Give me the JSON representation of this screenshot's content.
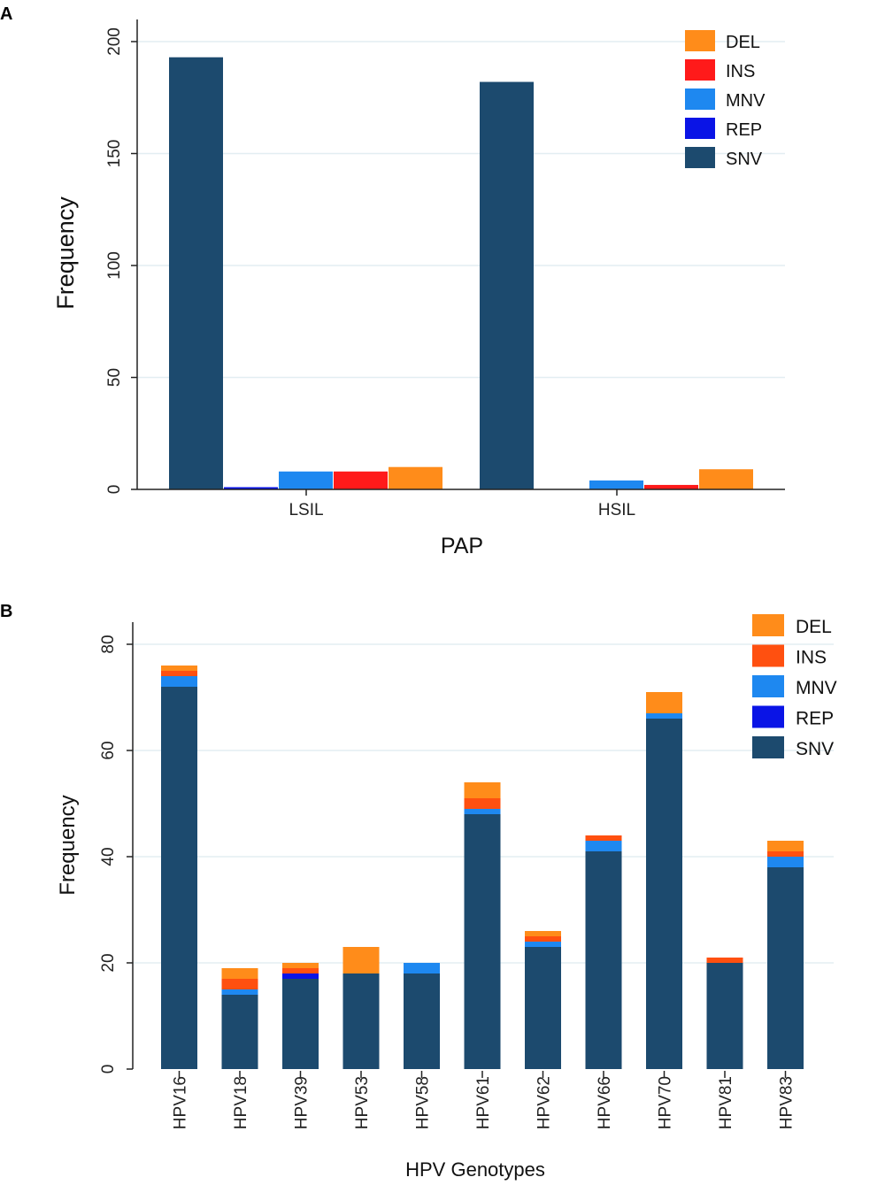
{
  "colors": {
    "DEL": "#ff8c1a",
    "INS": "#ff1a1a",
    "INS_B": "#ff5010",
    "MNV": "#1e88f0",
    "REP": "#0a14e6",
    "SNV": "#1c4a6e",
    "grid": "#e3eef2",
    "axis": "#222222"
  },
  "chart_data": [
    {
      "id": "A",
      "panel_label": "A",
      "type": "bar",
      "title": "",
      "xlabel": "PAP",
      "ylabel": "Frequency",
      "ylim": [
        0,
        210
      ],
      "yticks": [
        "0",
        "50",
        "100",
        "150",
        "200"
      ],
      "grid": true,
      "legend_position": "top-right",
      "categories": [
        "LSIL",
        "HSIL"
      ],
      "series": [
        {
          "name": "SNV",
          "values": [
            193,
            182
          ]
        },
        {
          "name": "REP",
          "values": [
            1,
            0
          ]
        },
        {
          "name": "MNV",
          "values": [
            8,
            4
          ]
        },
        {
          "name": "INS",
          "values": [
            8,
            2
          ]
        },
        {
          "name": "DEL",
          "values": [
            10,
            9
          ]
        }
      ],
      "legend": [
        "DEL",
        "INS",
        "MNV",
        "REP",
        "SNV"
      ]
    },
    {
      "id": "B",
      "panel_label": "B",
      "type": "bar",
      "stacked": true,
      "title": "",
      "xlabel": "HPV Genotypes",
      "ylabel": "Frequency",
      "ylim": [
        0,
        80
      ],
      "yticks": [
        "0",
        "20",
        "40",
        "60",
        "80"
      ],
      "grid": true,
      "legend_position": "top-right",
      "categories": [
        "HPV16",
        "HPV18",
        "HPV39",
        "HPV53",
        "HPV58",
        "HPV61",
        "HPV62",
        "HPV66",
        "HPV70",
        "HPV81",
        "HPV83"
      ],
      "series": [
        {
          "name": "SNV",
          "values": [
            72,
            14,
            17,
            18,
            18,
            48,
            23,
            41,
            66,
            20,
            38
          ]
        },
        {
          "name": "REP",
          "values": [
            0,
            0,
            1,
            0,
            0,
            0,
            0,
            0,
            0,
            0,
            0
          ]
        },
        {
          "name": "MNV",
          "values": [
            2,
            1,
            0,
            0,
            2,
            1,
            1,
            2,
            1,
            0,
            2
          ]
        },
        {
          "name": "INS",
          "values": [
            1,
            2,
            1,
            0,
            0,
            2,
            1,
            1,
            0,
            1,
            1
          ]
        },
        {
          "name": "DEL",
          "values": [
            1,
            2,
            1,
            5,
            0,
            3,
            1,
            0,
            4,
            0,
            2
          ]
        }
      ],
      "legend": [
        "DEL",
        "INS",
        "MNV",
        "REP",
        "SNV"
      ]
    }
  ]
}
